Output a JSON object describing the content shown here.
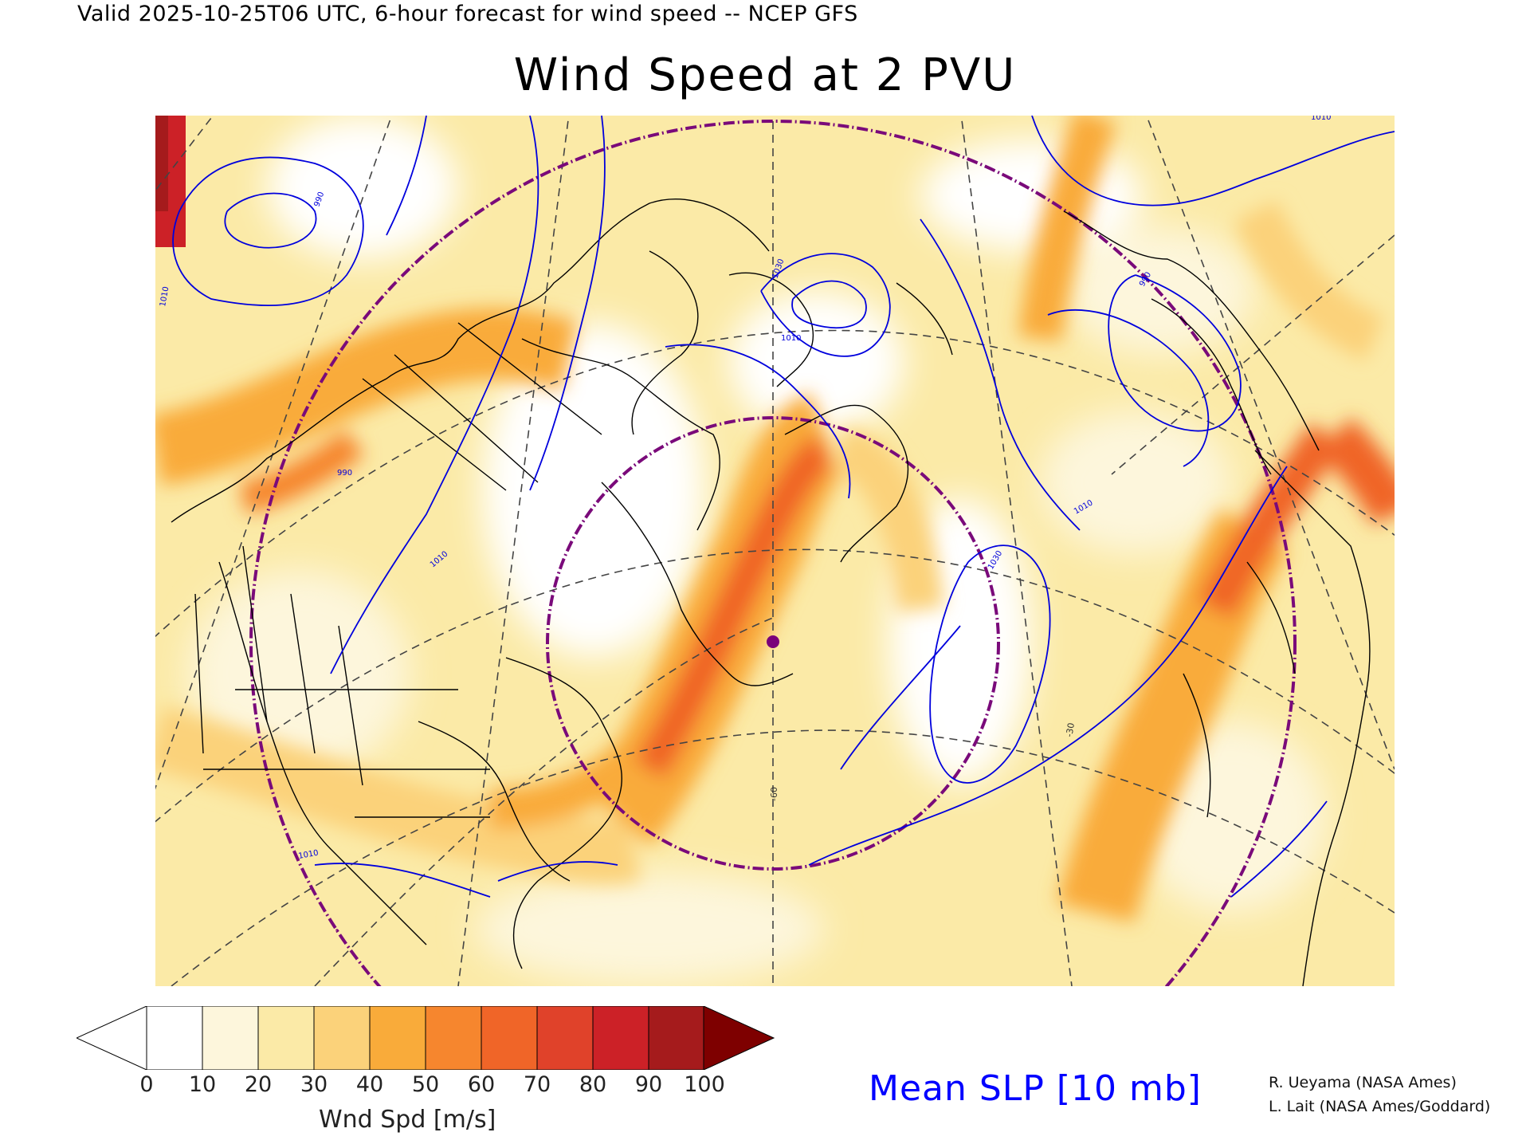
{
  "header": {
    "valid_line": "Valid 2025-10-25T06 UTC, 6-hour forecast for wind speed -- NCEP GFS",
    "title": "Wind Speed at 2 PVU"
  },
  "map": {
    "projection_note": "polar stereographic North Atlantic / North America",
    "slp_contour_labels": [
      "990",
      "1010",
      "1030",
      "1010",
      "990",
      "1010",
      "1030",
      "1010",
      "1010",
      "990",
      "1010"
    ],
    "slp_contour_color": "#0000dd",
    "range_ring_color": "#7a0a7a",
    "graticule_color": "#444444",
    "meridian_labels": [
      "-60",
      "-30"
    ]
  },
  "colorbar": {
    "label": "Wnd Spd [m/s]",
    "ticks": [
      "0",
      "10",
      "20",
      "30",
      "40",
      "50",
      "60",
      "70",
      "80",
      "90",
      "100"
    ],
    "colors": [
      "#ffffff",
      "#fdf6dc",
      "#fbeaa7",
      "#fbd27a",
      "#f9ab3a",
      "#f6862e",
      "#f06528",
      "#e0422a",
      "#cc2127",
      "#a51b1c",
      "#7e0000"
    ],
    "under_color": "#ffffff",
    "over_color": "#7e0000"
  },
  "legend": {
    "slp_label": "Mean SLP [10 mb]"
  },
  "credits": {
    "line1": "R. Ueyama (NASA Ames)",
    "line2": "L. Lait (NASA Ames/Goddard)"
  }
}
